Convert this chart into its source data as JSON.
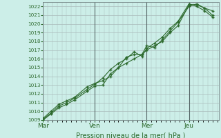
{
  "title": "",
  "xlabel": "Pression niveau de la mer( hPa )",
  "ylabel": "",
  "bg_color": "#cceee8",
  "plot_bg_color": "#cceee8",
  "grid_color": "#aabbbb",
  "line_color": "#2d6a2d",
  "marker_color": "#2d6a2d",
  "vline_color": "#556666",
  "ylim": [
    1009,
    1022.5
  ],
  "yticks": [
    1009,
    1010,
    1011,
    1012,
    1013,
    1014,
    1015,
    1016,
    1017,
    1018,
    1019,
    1020,
    1021,
    1022
  ],
  "day_labels": [
    "Mar",
    "Ven",
    "Mer",
    "Jeu"
  ],
  "day_positions": [
    0,
    3.3,
    6.6,
    9.3
  ],
  "series1_x": [
    0.0,
    0.5,
    1.0,
    1.5,
    2.0,
    2.8,
    3.3,
    3.8,
    4.3,
    4.8,
    5.3,
    5.8,
    6.3,
    6.6,
    7.1,
    7.6,
    8.1,
    8.6,
    9.3,
    9.8,
    10.3,
    10.8
  ],
  "series1_y": [
    1009.2,
    1010.0,
    1010.8,
    1011.2,
    1011.6,
    1012.8,
    1013.2,
    1013.5,
    1014.0,
    1015.0,
    1016.2,
    1016.5,
    1016.5,
    1017.0,
    1017.5,
    1018.0,
    1019.0,
    1019.8,
    1022.2,
    1022.2,
    1021.8,
    1021.0
  ],
  "series2_x": [
    0.0,
    0.5,
    1.0,
    1.5,
    2.0,
    2.8,
    3.3,
    3.8,
    4.3,
    4.8,
    5.3,
    5.8,
    6.3,
    6.6,
    7.1,
    7.6,
    8.1,
    8.6,
    9.3,
    9.8,
    10.3,
    10.8
  ],
  "series2_y": [
    1009.1,
    1009.8,
    1010.6,
    1011.0,
    1011.5,
    1012.5,
    1013.1,
    1013.8,
    1014.8,
    1015.5,
    1016.0,
    1016.8,
    1016.3,
    1017.2,
    1017.8,
    1018.5,
    1019.5,
    1020.3,
    1022.3,
    1022.0,
    1021.5,
    1020.8
  ],
  "series3_x": [
    0.0,
    0.5,
    1.0,
    1.5,
    2.0,
    2.8,
    3.3,
    3.8,
    4.3,
    4.8,
    5.3,
    5.8,
    6.3,
    6.6,
    7.1,
    7.6,
    8.1,
    8.6,
    9.3,
    9.8,
    10.3,
    10.8
  ],
  "series3_y": [
    1009.0,
    1009.7,
    1010.4,
    1010.8,
    1011.3,
    1012.3,
    1012.9,
    1013.0,
    1014.3,
    1015.0,
    1015.5,
    1016.0,
    1016.5,
    1017.5,
    1017.3,
    1018.2,
    1019.2,
    1020.2,
    1022.0,
    1022.3,
    1021.8,
    1021.5
  ],
  "xlim": [
    0.0,
    11.2
  ],
  "vline_positions": [
    0,
    3.3,
    6.6,
    9.3
  ]
}
